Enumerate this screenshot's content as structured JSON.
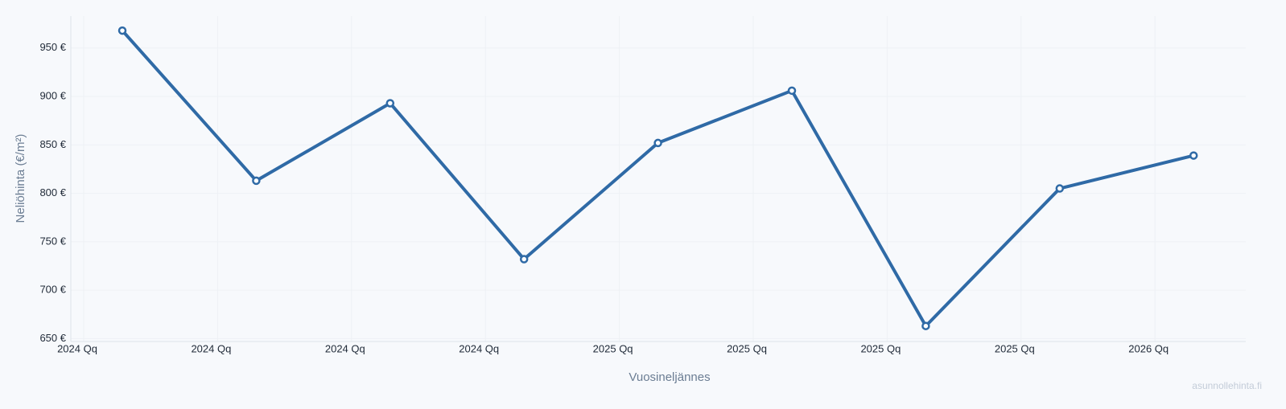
{
  "chart_data": {
    "type": "line",
    "x_label": "Vuosineljännes",
    "y_label": "Neliöhinta (€/m²)",
    "watermark": "asunnollehinta.fi",
    "categories": [
      "2024 Qq",
      "2024 Qq",
      "2024 Qq",
      "2024 Qq",
      "2025 Qq",
      "2025 Qq",
      "2025 Qq",
      "2025 Qq",
      "2026 Qq"
    ],
    "series": [
      {
        "name": "Neliöhinta",
        "color": "#2f6aa6",
        "values": [
          968,
          813,
          893,
          732,
          852,
          906,
          663,
          805,
          839
        ]
      }
    ],
    "ylim": [
      647,
      983
    ],
    "yticks": [
      {
        "value": 650,
        "label": "650 €"
      },
      {
        "value": 700,
        "label": "700 €"
      },
      {
        "value": 750,
        "label": "750 €"
      },
      {
        "value": 800,
        "label": "800 €"
      },
      {
        "value": 850,
        "label": "850 €"
      },
      {
        "value": 900,
        "label": "900 €"
      },
      {
        "value": 950,
        "label": "950 €"
      }
    ],
    "grid": true
  }
}
